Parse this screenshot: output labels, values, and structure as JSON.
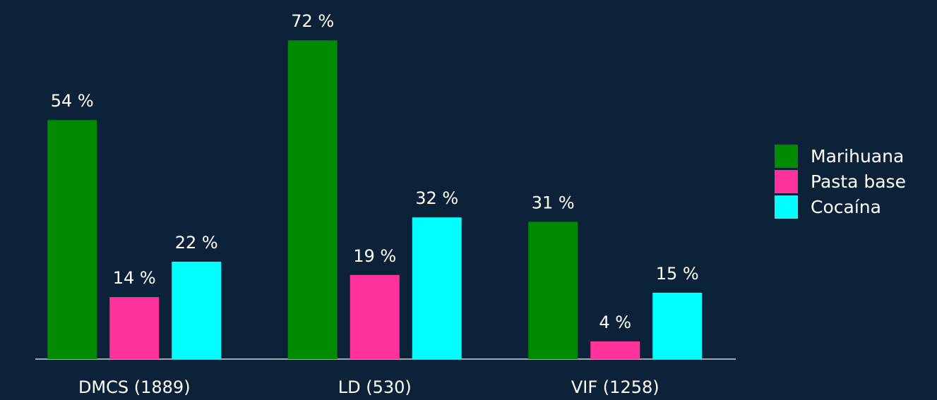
{
  "chart_data": {
    "type": "bar",
    "categories": [
      "DMCS (1889)",
      "LD (530)",
      "VIF (1258)"
    ],
    "series": [
      {
        "name": "Marihuana",
        "color": "#008a00",
        "values": [
          54,
          72,
          31
        ],
        "value_labels": [
          "54 %",
          "72 %",
          "31 %"
        ]
      },
      {
        "name": "Pasta base",
        "color": "#ff3399",
        "values": [
          14,
          19,
          4
        ],
        "value_labels": [
          "14 %",
          "19 %",
          "4 %"
        ]
      },
      {
        "name": "Cocaína",
        "color": "#00ffff",
        "values": [
          22,
          32,
          15
        ],
        "value_labels": [
          "22 %",
          "32 %",
          "15 %"
        ]
      }
    ],
    "ylim": [
      0,
      80
    ],
    "legend": "right"
  }
}
